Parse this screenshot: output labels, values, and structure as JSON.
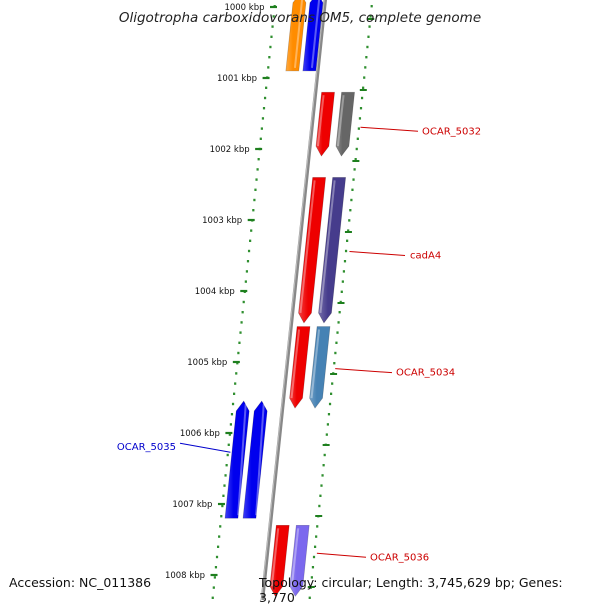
{
  "title": "Oligotropha carboxidovorans OM5, complete genome",
  "accession": "Accession: NC_011386",
  "summary": "Topology: circular; Length: 3,745,629 bp; Genes: 3,770",
  "colors": {
    "backbone": "#888888",
    "tick": "#1e7f1e",
    "dots": "#2f8f2f",
    "label_red": "#cc0000",
    "label_blue": "#0000cc"
  },
  "ruler": {
    "unit": "kbp",
    "ticks": [
      {
        "value": 1000,
        "label": "1000 kbp"
      },
      {
        "value": 1001,
        "label": "1001 kbp"
      },
      {
        "value": 1002,
        "label": "1002 kbp"
      },
      {
        "value": 1003,
        "label": "1003 kbp"
      },
      {
        "value": 1004,
        "label": "1004 kbp"
      },
      {
        "value": 1005,
        "label": "1005 kbp"
      },
      {
        "value": 1006,
        "label": "1006 kbp"
      },
      {
        "value": 1007,
        "label": "1007 kbp"
      },
      {
        "value": 1008,
        "label": "1008 kbp"
      }
    ]
  },
  "genes": [
    {
      "name": "",
      "strand": "minus",
      "start": 999.8,
      "end": 1000.9,
      "color": "#ff8c00"
    },
    {
      "name": "",
      "strand": "minus",
      "start": 999.8,
      "end": 1000.9,
      "color": "#0000ee"
    },
    {
      "name": "OCAR_5032",
      "strand": "plus",
      "start": 1001.2,
      "end": 1002.1,
      "color": "#ee0000",
      "label_color": "#cc0000"
    },
    {
      "name": "",
      "strand": "plus",
      "start": 1001.2,
      "end": 1002.1,
      "color": "#666666"
    },
    {
      "name": "cadA4",
      "strand": "plus",
      "start": 1002.4,
      "end": 1004.45,
      "color": "#ee0000",
      "label_color": "#cc0000"
    },
    {
      "name": "",
      "strand": "plus",
      "start": 1002.4,
      "end": 1004.45,
      "color": "#463c8c"
    },
    {
      "name": "OCAR_5034",
      "strand": "plus",
      "start": 1004.5,
      "end": 1005.65,
      "color": "#ee0000",
      "label_color": "#cc0000"
    },
    {
      "name": "",
      "strand": "plus",
      "start": 1004.5,
      "end": 1005.65,
      "color": "#4682b4"
    },
    {
      "name": "OCAR_5035",
      "strand": "minus",
      "start": 1005.55,
      "end": 1007.2,
      "color": "#0000ee",
      "label_color": "#0000cc"
    },
    {
      "name": "",
      "strand": "minus",
      "start": 1005.55,
      "end": 1007.2,
      "color": "#0000ee"
    },
    {
      "name": "OCAR_5036",
      "strand": "plus",
      "start": 1007.3,
      "end": 1008.3,
      "color": "#ee0000",
      "label_color": "#cc0000"
    },
    {
      "name": "",
      "strand": "plus",
      "start": 1007.3,
      "end": 1008.3,
      "color": "#7b68ee"
    }
  ]
}
